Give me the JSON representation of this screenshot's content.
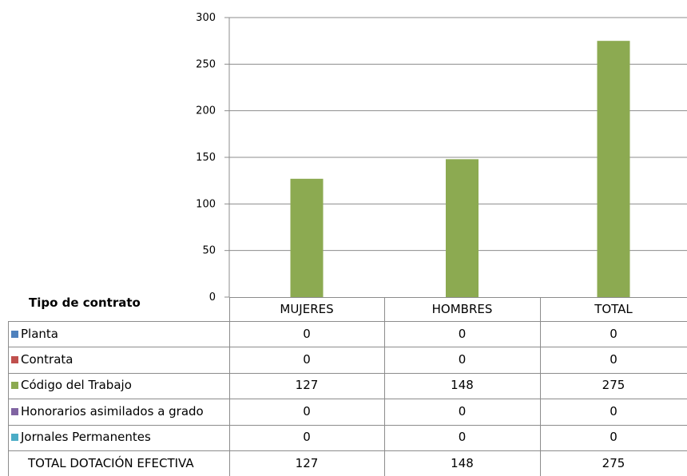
{
  "chart_data": {
    "type": "bar",
    "categories": [
      "MUJERES",
      "HOMBRES",
      "TOTAL"
    ],
    "series": [
      {
        "name": "Planta",
        "color": "#4f81bd",
        "values": [
          0,
          0,
          0
        ]
      },
      {
        "name": "Contrata",
        "color": "#c0504d",
        "values": [
          0,
          0,
          0
        ]
      },
      {
        "name": "Código del Trabajo",
        "color": "#8caa51",
        "values": [
          127,
          148,
          275
        ]
      },
      {
        "name": "Honorarios asimilados a grado",
        "color": "#8064a2",
        "values": [
          0,
          0,
          0
        ]
      },
      {
        "name": "Jornales Permanentes",
        "color": "#4bacc6",
        "values": [
          0,
          0,
          0
        ]
      }
    ],
    "totals": {
      "name": "TOTAL DOTACIÓN EFECTIVA",
      "values": [
        127,
        148,
        275
      ]
    },
    "yticks": [
      0,
      50,
      100,
      150,
      200,
      250,
      300
    ],
    "ylim": [
      0,
      300
    ],
    "grid": true,
    "legend": "data-table",
    "table_title": "Tipo de contrato"
  }
}
